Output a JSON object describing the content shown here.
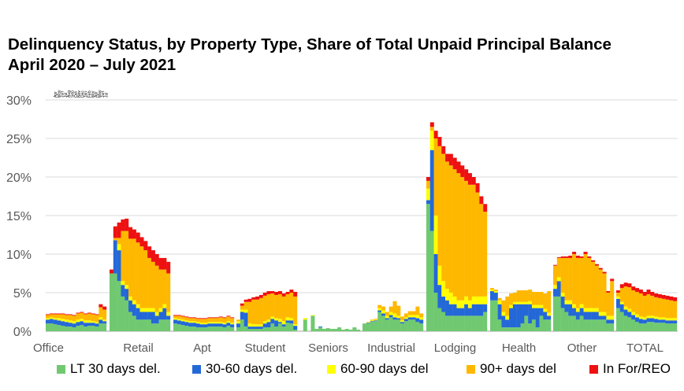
{
  "title_line1": "Delinquency Status, by Property Type, Share of Total Unpaid Principal Balance",
  "title_line2": "April 2020 – July 2021",
  "chart_data": {
    "type": "bar",
    "stacked": true,
    "ylim": [
      0,
      30
    ],
    "y_ticks": [
      "0%",
      "5%",
      "10%",
      "15%",
      "20%",
      "25%",
      "30%"
    ],
    "grid": true,
    "legend_position": "bottom",
    "month_labels": [
      "Apr",
      "May",
      "Jun",
      "Jul",
      "Aug",
      "Sep",
      "Oct",
      "Nov",
      "Dec",
      "Jan",
      "Feb",
      "Mar",
      "Apr",
      "May",
      "Jun",
      "Jul"
    ],
    "series": [
      {
        "name": "LT 30 days del.",
        "color": "#70C970"
      },
      {
        "name": "30-60 days del.",
        "color": "#2468D8"
      },
      {
        "name": "60-90 days del",
        "color": "#FFFF00"
      },
      {
        "name": "90+ days del",
        "color": "#FFB800"
      },
      {
        "name": "In For/REO",
        "color": "#EE1111"
      }
    ],
    "groups": [
      {
        "name": "Office",
        "bars": [
          [
            1.0,
            0.5,
            0.2,
            0.4,
            0.1
          ],
          [
            1.0,
            0.6,
            0.2,
            0.4,
            0.1
          ],
          [
            0.9,
            0.6,
            0.2,
            0.5,
            0.1
          ],
          [
            0.8,
            0.6,
            0.3,
            0.5,
            0.1
          ],
          [
            0.7,
            0.6,
            0.3,
            0.6,
            0.1
          ],
          [
            0.6,
            0.6,
            0.3,
            0.6,
            0.1
          ],
          [
            0.6,
            0.5,
            0.3,
            0.7,
            0.1
          ],
          [
            0.5,
            0.5,
            0.3,
            0.7,
            0.1
          ],
          [
            0.7,
            0.5,
            0.3,
            0.8,
            0.1
          ],
          [
            0.8,
            0.5,
            0.3,
            0.8,
            0.1
          ],
          [
            0.6,
            0.5,
            0.3,
            0.8,
            0.1
          ],
          [
            0.7,
            0.4,
            0.3,
            0.9,
            0.1
          ],
          [
            0.7,
            0.4,
            0.2,
            0.9,
            0.1
          ],
          [
            0.6,
            0.4,
            0.2,
            0.9,
            0.1
          ],
          [
            1.0,
            0.5,
            0.3,
            1.3,
            0.4
          ],
          [
            1.0,
            0.3,
            0.2,
            1.3,
            0.4
          ]
        ]
      },
      {
        "name": "Retail",
        "bars": [
          [
            7.5,
            0.0,
            0.0,
            0.0,
            0.5
          ],
          [
            7.5,
            4.3,
            0.0,
            0.3,
            1.5
          ],
          [
            6.5,
            4.0,
            0.8,
            0.8,
            2.0
          ],
          [
            4.5,
            1.5,
            0.5,
            6.5,
            1.5
          ],
          [
            4.0,
            1.5,
            0.5,
            7.0,
            1.6
          ],
          [
            2.5,
            1.5,
            0.5,
            7.5,
            1.5
          ],
          [
            2.0,
            1.5,
            0.5,
            8.0,
            1.2
          ],
          [
            1.5,
            1.5,
            0.5,
            8.0,
            1.3
          ],
          [
            1.5,
            1.0,
            0.5,
            8.0,
            1.2
          ],
          [
            1.5,
            1.0,
            0.5,
            7.5,
            1.2
          ],
          [
            1.5,
            1.0,
            0.5,
            6.5,
            1.5
          ],
          [
            1.0,
            1.5,
            0.5,
            6.0,
            1.5
          ],
          [
            1.0,
            1.0,
            0.5,
            6.0,
            1.5
          ],
          [
            1.5,
            1.0,
            0.5,
            5.0,
            1.5
          ],
          [
            1.5,
            1.5,
            0.5,
            4.5,
            1.5
          ],
          [
            1.5,
            0.5,
            0.5,
            5.0,
            1.5
          ]
        ]
      },
      {
        "name": "Apt",
        "bars": [
          [
            1.0,
            0.5,
            0.2,
            0.3,
            0.1
          ],
          [
            0.9,
            0.5,
            0.2,
            0.4,
            0.1
          ],
          [
            0.8,
            0.5,
            0.2,
            0.4,
            0.1
          ],
          [
            0.7,
            0.5,
            0.2,
            0.4,
            0.1
          ],
          [
            0.6,
            0.5,
            0.2,
            0.4,
            0.1
          ],
          [
            0.6,
            0.5,
            0.2,
            0.4,
            0.1
          ],
          [
            0.5,
            0.5,
            0.2,
            0.4,
            0.1
          ],
          [
            0.5,
            0.4,
            0.2,
            0.5,
            0.1
          ],
          [
            0.5,
            0.4,
            0.2,
            0.5,
            0.1
          ],
          [
            0.6,
            0.4,
            0.2,
            0.5,
            0.1
          ],
          [
            0.6,
            0.4,
            0.2,
            0.5,
            0.1
          ],
          [
            0.6,
            0.4,
            0.2,
            0.5,
            0.1
          ],
          [
            0.6,
            0.4,
            0.2,
            0.6,
            0.1
          ],
          [
            0.5,
            0.4,
            0.2,
            0.6,
            0.1
          ],
          [
            0.7,
            0.4,
            0.2,
            0.6,
            0.1
          ],
          [
            0.5,
            0.4,
            0.2,
            0.6,
            0.1
          ]
        ]
      },
      {
        "name": "Student",
        "bars": [
          [
            0.5,
            0.5,
            0.3,
            0.2,
            0.0
          ],
          [
            1.5,
            1.0,
            0.3,
            0.5,
            0.3
          ],
          [
            0.6,
            1.8,
            0.4,
            1.0,
            0.3
          ],
          [
            0.3,
            0.3,
            0.4,
            2.8,
            0.4
          ],
          [
            0.3,
            0.3,
            0.3,
            3.2,
            0.3
          ],
          [
            0.3,
            0.3,
            0.3,
            3.2,
            0.4
          ],
          [
            0.3,
            0.3,
            0.3,
            3.4,
            0.4
          ],
          [
            0.5,
            0.5,
            0.3,
            3.3,
            0.4
          ],
          [
            0.5,
            0.7,
            0.3,
            3.3,
            0.4
          ],
          [
            1.0,
            0.6,
            0.3,
            3.0,
            0.3
          ],
          [
            0.6,
            0.8,
            0.3,
            3.0,
            0.4
          ],
          [
            1.0,
            0.2,
            0.4,
            3.2,
            0.4
          ],
          [
            0.6,
            0.3,
            0.4,
            3.2,
            0.4
          ],
          [
            1.1,
            0.3,
            0.4,
            3.0,
            0.3
          ],
          [
            1.0,
            0.4,
            0.3,
            3.3,
            0.4
          ],
          [
            0.2,
            0.5,
            0.2,
            3.6,
            0.6
          ]
        ]
      },
      {
        "name": "Seniors",
        "bars": [
          [
            0.0,
            0.0,
            0.0,
            0.0,
            0.0
          ],
          [
            1.5,
            0.0,
            0.2,
            0.0,
            0.0
          ],
          [
            0.0,
            0.0,
            0.0,
            0.0,
            0.0
          ],
          [
            2.0,
            0.0,
            0.1,
            0.0,
            0.0
          ],
          [
            0.3,
            0.0,
            0.0,
            0.0,
            0.0
          ],
          [
            0.5,
            0.1,
            0.0,
            0.0,
            0.0
          ],
          [
            0.3,
            0.0,
            0.0,
            0.0,
            0.0
          ],
          [
            0.4,
            0.0,
            0.0,
            0.0,
            0.0
          ],
          [
            0.3,
            0.0,
            0.0,
            0.0,
            0.0
          ],
          [
            0.3,
            0.0,
            0.0,
            0.0,
            0.0
          ],
          [
            0.5,
            0.0,
            0.0,
            0.0,
            0.0
          ],
          [
            0.2,
            0.0,
            0.0,
            0.0,
            0.0
          ],
          [
            0.3,
            0.0,
            0.0,
            0.0,
            0.0
          ],
          [
            0.2,
            0.0,
            0.0,
            0.0,
            0.0
          ],
          [
            0.5,
            0.0,
            0.0,
            0.0,
            0.0
          ],
          [
            0.2,
            0.0,
            0.0,
            0.0,
            0.0
          ]
        ]
      },
      {
        "name": "Industrial",
        "bars": [
          [
            1.0,
            0.0,
            0.0,
            0.0,
            0.0
          ],
          [
            1.0,
            0.1,
            0.1,
            0.0,
            0.0
          ],
          [
            1.2,
            0.1,
            0.1,
            0.1,
            0.0
          ],
          [
            1.3,
            0.1,
            0.1,
            0.1,
            0.0
          ],
          [
            2.5,
            0.2,
            0.3,
            0.4,
            0.0
          ],
          [
            2.0,
            0.3,
            0.4,
            0.5,
            0.0
          ],
          [
            1.5,
            0.2,
            0.3,
            0.5,
            0.0
          ],
          [
            1.8,
            0.3,
            0.4,
            0.7,
            0.0
          ],
          [
            1.5,
            0.3,
            0.5,
            1.6,
            0.0
          ],
          [
            1.5,
            0.2,
            0.3,
            1.3,
            0.0
          ],
          [
            1.0,
            0.2,
            0.2,
            0.5,
            0.0
          ],
          [
            1.3,
            0.3,
            0.2,
            0.5,
            0.0
          ],
          [
            1.5,
            0.3,
            0.3,
            0.5,
            0.0
          ],
          [
            1.5,
            0.3,
            0.3,
            0.5,
            0.0
          ],
          [
            1.2,
            0.5,
            0.4,
            1.1,
            0.0
          ],
          [
            1.0,
            0.5,
            0.3,
            0.5,
            0.0
          ]
        ]
      },
      {
        "name": "Lodging",
        "bars": [
          [
            16.5,
            0.5,
            1.5,
            1.0,
            0.5
          ],
          [
            13.0,
            10.5,
            2.5,
            0.5,
            0.6
          ],
          [
            5.0,
            5.0,
            5.0,
            10.0,
            1.0
          ],
          [
            3.0,
            3.0,
            2.5,
            15.5,
            1.2
          ],
          [
            2.5,
            2.0,
            2.0,
            16.5,
            1.0
          ],
          [
            2.0,
            2.0,
            1.5,
            16.5,
            1.0
          ],
          [
            2.0,
            1.5,
            1.5,
            16.5,
            1.5
          ],
          [
            2.0,
            1.5,
            1.0,
            16.5,
            1.5
          ],
          [
            2.0,
            1.0,
            1.0,
            16.5,
            1.5
          ],
          [
            2.0,
            1.0,
            1.0,
            16.0,
            1.5
          ],
          [
            2.0,
            1.5,
            1.0,
            15.0,
            1.5
          ],
          [
            2.0,
            1.0,
            1.0,
            15.0,
            1.5
          ],
          [
            2.0,
            1.5,
            1.0,
            14.5,
            1.0
          ],
          [
            2.0,
            1.5,
            1.0,
            13.5,
            1.2
          ],
          [
            2.0,
            1.5,
            1.0,
            12.0,
            1.0
          ],
          [
            2.5,
            1.0,
            1.0,
            11.0,
            1.0
          ]
        ]
      },
      {
        "name": "Health",
        "bars": [
          [
            4.0,
            1.2,
            0.2,
            0.2,
            0.0
          ],
          [
            4.0,
            1.0,
            0.2,
            0.2,
            0.0
          ],
          [
            1.5,
            2.0,
            0.5,
            0.3,
            0.0
          ],
          [
            0.5,
            1.5,
            0.5,
            1.5,
            0.0
          ],
          [
            0.5,
            1.0,
            0.5,
            2.5,
            0.0
          ],
          [
            0.5,
            2.5,
            0.4,
            1.5,
            0.0
          ],
          [
            0.5,
            3.0,
            0.3,
            1.2,
            0.0
          ],
          [
            0.5,
            3.0,
            0.3,
            1.5,
            0.0
          ],
          [
            1.0,
            2.5,
            0.3,
            1.5,
            0.0
          ],
          [
            2.0,
            1.5,
            0.3,
            1.5,
            0.0
          ],
          [
            1.0,
            2.5,
            0.4,
            1.5,
            0.0
          ],
          [
            1.5,
            1.5,
            0.4,
            1.7,
            0.0
          ],
          [
            0.5,
            2.5,
            0.4,
            1.7,
            0.0
          ],
          [
            2.0,
            1.0,
            0.4,
            1.7,
            0.0
          ],
          [
            1.5,
            1.0,
            0.4,
            2.0,
            0.0
          ],
          [
            1.5,
            0.5,
            0.4,
            2.8,
            0.0
          ]
        ]
      },
      {
        "name": "Other",
        "bars": [
          [
            4.5,
            1.0,
            0.5,
            2.5,
            0.1
          ],
          [
            4.5,
            2.0,
            0.5,
            2.5,
            0.1
          ],
          [
            3.0,
            1.5,
            0.5,
            4.5,
            0.2
          ],
          [
            2.5,
            1.0,
            0.5,
            5.5,
            0.2
          ],
          [
            2.0,
            1.5,
            0.5,
            5.5,
            0.3
          ],
          [
            2.0,
            1.0,
            0.5,
            6.5,
            0.3
          ],
          [
            1.5,
            1.0,
            0.5,
            6.5,
            0.3
          ],
          [
            2.0,
            1.0,
            0.5,
            6.0,
            0.2
          ],
          [
            1.5,
            1.0,
            0.5,
            7.0,
            0.3
          ],
          [
            1.5,
            1.0,
            0.5,
            6.5,
            0.2
          ],
          [
            1.5,
            1.0,
            0.5,
            6.0,
            0.2
          ],
          [
            1.5,
            1.0,
            0.5,
            5.5,
            0.2
          ],
          [
            1.5,
            0.5,
            0.5,
            5.5,
            0.2
          ],
          [
            1.5,
            0.5,
            0.5,
            5.0,
            0.2
          ],
          [
            1.0,
            0.5,
            0.5,
            3.0,
            0.2
          ],
          [
            1.0,
            0.5,
            0.5,
            4.5,
            0.3
          ]
        ]
      },
      {
        "name": "TOTAL",
        "bars": [
          [
            3.0,
            1.2,
            0.3,
            0.5,
            0.3
          ],
          [
            2.5,
            1.0,
            0.3,
            1.8,
            0.5
          ],
          [
            2.0,
            0.8,
            0.4,
            2.6,
            0.5
          ],
          [
            1.8,
            0.7,
            0.4,
            2.8,
            0.5
          ],
          [
            1.5,
            0.6,
            0.4,
            2.8,
            0.5
          ],
          [
            1.2,
            0.6,
            0.4,
            2.9,
            0.5
          ],
          [
            1.0,
            0.6,
            0.3,
            3.0,
            0.5
          ],
          [
            1.0,
            0.5,
            0.3,
            2.8,
            0.5
          ],
          [
            1.2,
            0.5,
            0.3,
            2.8,
            0.6
          ],
          [
            1.2,
            0.5,
            0.3,
            2.6,
            0.5
          ],
          [
            1.1,
            0.5,
            0.3,
            2.5,
            0.5
          ],
          [
            1.1,
            0.4,
            0.3,
            2.5,
            0.5
          ],
          [
            1.1,
            0.4,
            0.3,
            2.4,
            0.5
          ],
          [
            1.0,
            0.4,
            0.3,
            2.4,
            0.5
          ],
          [
            1.0,
            0.4,
            0.3,
            2.3,
            0.5
          ],
          [
            1.0,
            0.4,
            0.3,
            2.2,
            0.5
          ]
        ]
      }
    ]
  }
}
